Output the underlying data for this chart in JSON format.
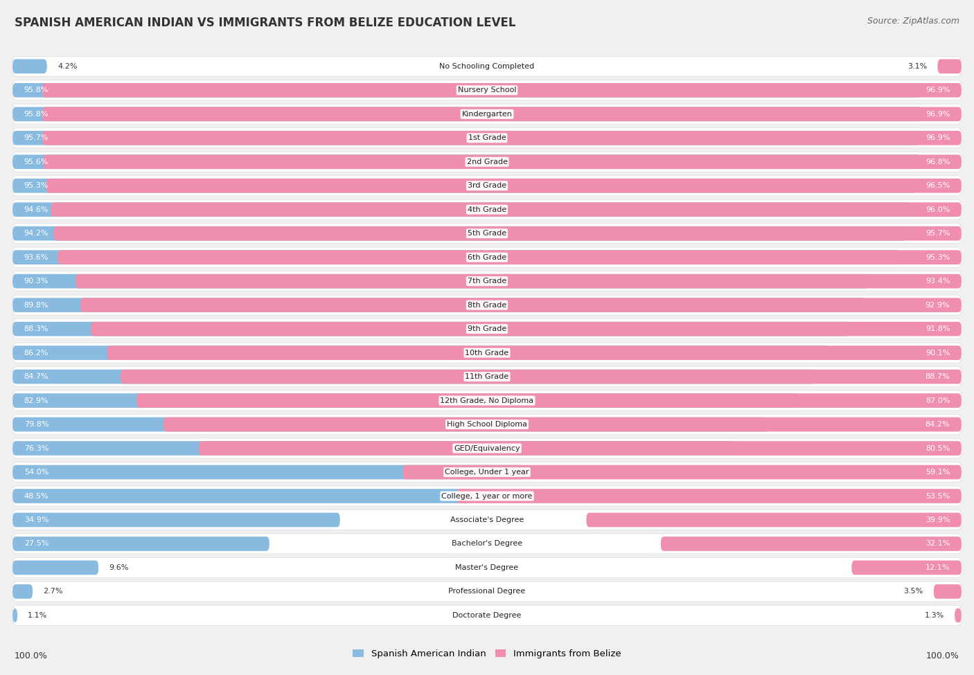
{
  "title": "SPANISH AMERICAN INDIAN VS IMMIGRANTS FROM BELIZE EDUCATION LEVEL",
  "source": "Source: ZipAtlas.com",
  "categories": [
    "No Schooling Completed",
    "Nursery School",
    "Kindergarten",
    "1st Grade",
    "2nd Grade",
    "3rd Grade",
    "4th Grade",
    "5th Grade",
    "6th Grade",
    "7th Grade",
    "8th Grade",
    "9th Grade",
    "10th Grade",
    "11th Grade",
    "12th Grade, No Diploma",
    "High School Diploma",
    "GED/Equivalency",
    "College, Under 1 year",
    "College, 1 year or more",
    "Associate's Degree",
    "Bachelor's Degree",
    "Master's Degree",
    "Professional Degree",
    "Doctorate Degree"
  ],
  "spanish_values": [
    4.2,
    95.8,
    95.8,
    95.7,
    95.6,
    95.3,
    94.6,
    94.2,
    93.6,
    90.3,
    89.8,
    88.3,
    86.2,
    84.7,
    82.9,
    79.8,
    76.3,
    54.0,
    48.5,
    34.9,
    27.5,
    9.6,
    2.7,
    1.1
  ],
  "belize_values": [
    3.1,
    96.9,
    96.9,
    96.9,
    96.8,
    96.5,
    96.0,
    95.7,
    95.3,
    93.4,
    92.9,
    91.8,
    90.1,
    88.7,
    87.0,
    84.2,
    80.5,
    59.1,
    53.5,
    39.9,
    32.1,
    12.1,
    3.5,
    1.3
  ],
  "blue_color": "#89BBE0",
  "pink_color": "#F08EAD",
  "bg_color": "#F0F0F0",
  "row_bg_color": "#FFFFFF",
  "legend_blue": "Spanish American Indian",
  "legend_pink": "Immigrants from Belize",
  "axis_label_left": "100.0%",
  "axis_label_right": "100.0%",
  "title_fontsize": 12,
  "source_fontsize": 9,
  "label_fontsize": 8,
  "value_fontsize": 8
}
